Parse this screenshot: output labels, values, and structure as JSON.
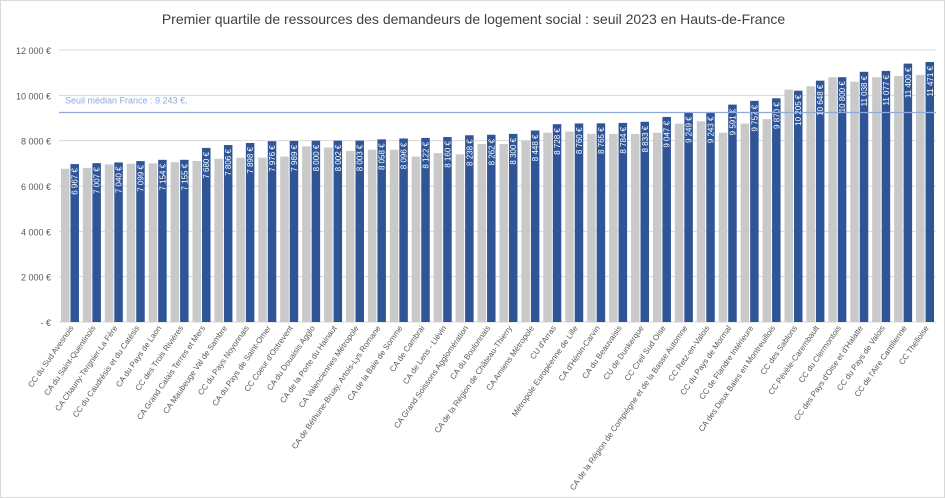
{
  "chart_data": {
    "type": "bar",
    "title": "Premier quartile de ressources des demandeurs de logement social : seuil 2023 en Hauts-de-France",
    "ylim": [
      0,
      12000
    ],
    "yticks": [
      0,
      2000,
      4000,
      6000,
      8000,
      10000,
      12000
    ],
    "ytick_labels": [
      "-   €",
      "2 000 €",
      "4 000 €",
      "6 000 €",
      "8 000 €",
      "10 000 €",
      "12 000 €"
    ],
    "grid": true,
    "reference_line": {
      "value": 9243,
      "label": "Seuil médian France : 9 243 €,"
    },
    "categories": [
      "CC du Sud Avesnois",
      "CA du Saint-Quentinois",
      "CA Chauny-Tergnier-La Fère",
      "CC du Caudrésis et du Catésis",
      "CA du Pays de Laon",
      "CC des Trois Rivières",
      "CA Grand Calais Terres et Mers",
      "CA Maubeuge Val de Sambre",
      "CC du Pays Noyonnais",
      "CA du Pays de Saint-Omer",
      "CC Coeur d'Ostrevent",
      "CA du Douaisis Agglo",
      "CA de la Porte du Hainaut",
      "CA Valenciennes Métropole",
      "CA de Béthune-Bruay, Artois-Lys Romane",
      "CA de la Baie de Somme",
      "CA de Cambrai",
      "CA de Lens - Liévin",
      "CA Grand Soissons Agglomération",
      "CA du Boulonnais",
      "CA de la Région de Château-Thierry",
      "CA Amiens Métropole",
      "CU d'Arras",
      "Métropole Européenne de Lille",
      "CA d'Hénin-Carvin",
      "CA du Beauvaisis",
      "CU de Dunkerque",
      "CC Creil Sud Oise",
      "CA de la Région de Compiègne et de la Basse Automne",
      "CC Retz-en-Valois",
      "CC du Pays de Mormal",
      "CC de Flandre Intérieure",
      "CA des Deux Baies en Montreuillois",
      "CC des Sablons",
      "CC Pévèle-Carembault",
      "CC du Clermontois",
      "CC des Pays d'Oise et d'Halatte",
      "CC du Pays de Valois",
      "CC de l'Aire Cantilienne",
      "CC Thelloise"
    ],
    "series": [
      {
        "color": "#c9c9c9",
        "values": [
          6760,
          6800,
          6950,
          6980,
          7000,
          7050,
          7100,
          7200,
          7250,
          7250,
          7300,
          7750,
          7700,
          7550,
          7600,
          7600,
          7300,
          7450,
          7400,
          7850,
          7850,
          8000,
          8350,
          8400,
          8300,
          8300,
          8300,
          8350,
          8750,
          8850,
          8350,
          8750,
          8950,
          10250,
          10400,
          10800,
          10600,
          10800,
          10850,
          10900
        ]
      },
      {
        "color": "#2f5597",
        "values": [
          6967,
          7007,
          7040,
          7099,
          7154,
          7155,
          7680,
          7806,
          7898,
          7976,
          7989,
          8000,
          8002,
          8003,
          8058,
          8096,
          8122,
          8160,
          8238,
          8262,
          8300,
          8448,
          8728,
          8760,
          8765,
          8784,
          8833,
          9047,
          9249,
          9243,
          9591,
          9757,
          9870,
          10205,
          10648,
          10800,
          11038,
          11077,
          11400,
          11471
        ],
        "labels": [
          "6 967 €",
          "7 007 €",
          "7 040 €",
          "7 099 €",
          "7 154 €",
          "7 155 €",
          "7 680 €",
          "7 806 €",
          "7 898 €",
          "7 976 €",
          "7 989 €",
          "8 000 €",
          "8 002 €",
          "8 003 €",
          "8 058 €",
          "8 096 €",
          "8 122 €",
          "8 160 €",
          "8 238 €",
          "8 262 €",
          "8 300 €",
          "8 448 €",
          "8 728 €",
          "8 760 €",
          "8 765 €",
          "8 784 €",
          "8 833 €",
          "9 047 €",
          "9 249 €",
          "9 243 €",
          "9 591 €",
          "9 757 €",
          "9 870 €",
          "10 205 €",
          "10 648 €",
          "10 800 €",
          "11 038 €",
          "11 077 €",
          "11 400 €",
          "11 471 €"
        ]
      }
    ],
    "colors": {
      "gridline": "#d9d9d9",
      "axis_text": "#595959",
      "reference": "#8eaadb"
    }
  }
}
